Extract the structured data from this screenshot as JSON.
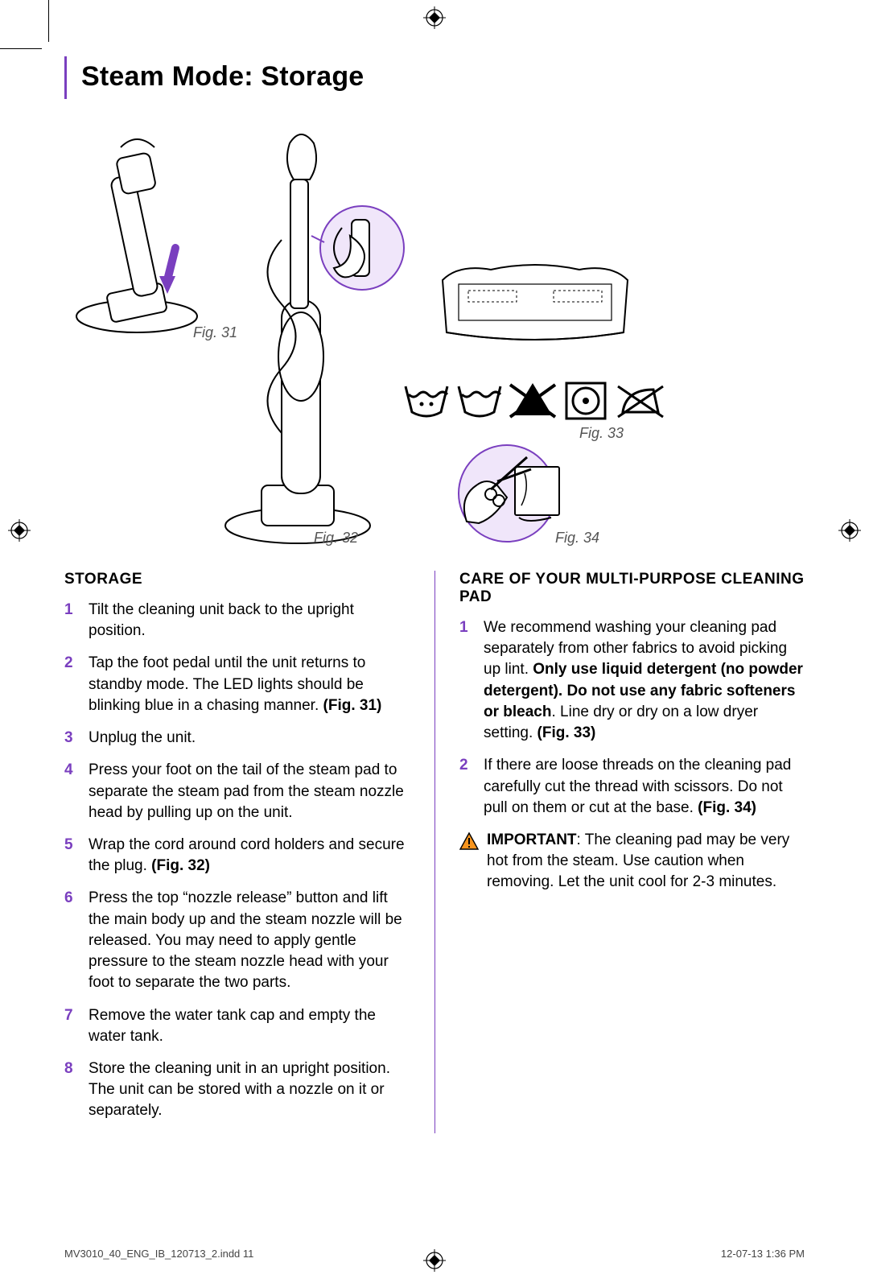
{
  "colors": {
    "accent": "#7a3fbf",
    "accent_fill": "#f0e6fa",
    "text": "#000000",
    "muted": "#555555",
    "warn_bg": "#f7941d",
    "warn_stroke": "#000000"
  },
  "title": "Steam Mode: Storage",
  "figures": {
    "fig31_label": "Fig. 31",
    "fig32_label": "Fig. 32",
    "fig33_label": "Fig. 33",
    "fig34_label": "Fig. 34"
  },
  "left": {
    "heading": "STORAGE",
    "steps": [
      {
        "n": "1",
        "html": "Tilt the cleaning unit back to the upright position."
      },
      {
        "n": "2",
        "html": "Tap the foot pedal until the unit returns to standby mode. The LED lights should be blinking blue in a chasing manner. <b>(Fig. 31)</b>"
      },
      {
        "n": "3",
        "html": "Unplug the unit."
      },
      {
        "n": "4",
        "html": "Press your foot on the tail of the steam pad to separate the steam pad from the steam nozzle head by pulling up on the unit."
      },
      {
        "n": "5",
        "html": "Wrap the cord around cord holders and secure the plug. <b>(Fig. 32)</b>"
      },
      {
        "n": "6",
        "html": "Press the top “nozzle release” button and lift the main body up and the steam nozzle will be released. You may need to apply gentle pressure to the steam nozzle head with your foot to separate the two parts."
      },
      {
        "n": "7",
        "html": "Remove the water tank cap and empty the water tank."
      },
      {
        "n": "8",
        "html": "Store the cleaning unit in an upright position. The unit can be stored with a nozzle on it or separately."
      }
    ]
  },
  "right": {
    "heading": "CARE OF YOUR MULTI-PURPOSE CLEANING PAD",
    "steps": [
      {
        "n": "1",
        "html": "We recommend washing your cleaning pad separately from other fabrics to avoid picking up lint. <b>Only use liquid detergent (no powder detergent). Do not use any fabric softeners or bleach</b>. Line dry or dry on a low dryer setting. <b>(Fig. 33)</b>"
      },
      {
        "n": "2",
        "html": "If there are loose threads on the cleaning pad carefully cut the thread with scissors. Do not pull on them or cut at the base. <b>(Fig. 34)</b>"
      }
    ],
    "important_html": "<b>IMPORTANT</b>: The cleaning pad may be very hot from the steam. Use caution when removing. Let the unit cool for 2-3 minutes."
  },
  "footer": {
    "left": "MV3010_40_ENG_IB_120713_2.indd   11",
    "right": "12-07-13   1:36 PM"
  },
  "care_icons": [
    {
      "name": "wash-cold-icon",
      "type": "wash_dots"
    },
    {
      "name": "wash-icon",
      "type": "wash_plain"
    },
    {
      "name": "no-bleach-icon",
      "type": "no_bleach"
    },
    {
      "name": "tumble-dry-low-icon",
      "type": "tumble_low"
    },
    {
      "name": "do-not-iron-icon",
      "type": "no_iron"
    }
  ]
}
